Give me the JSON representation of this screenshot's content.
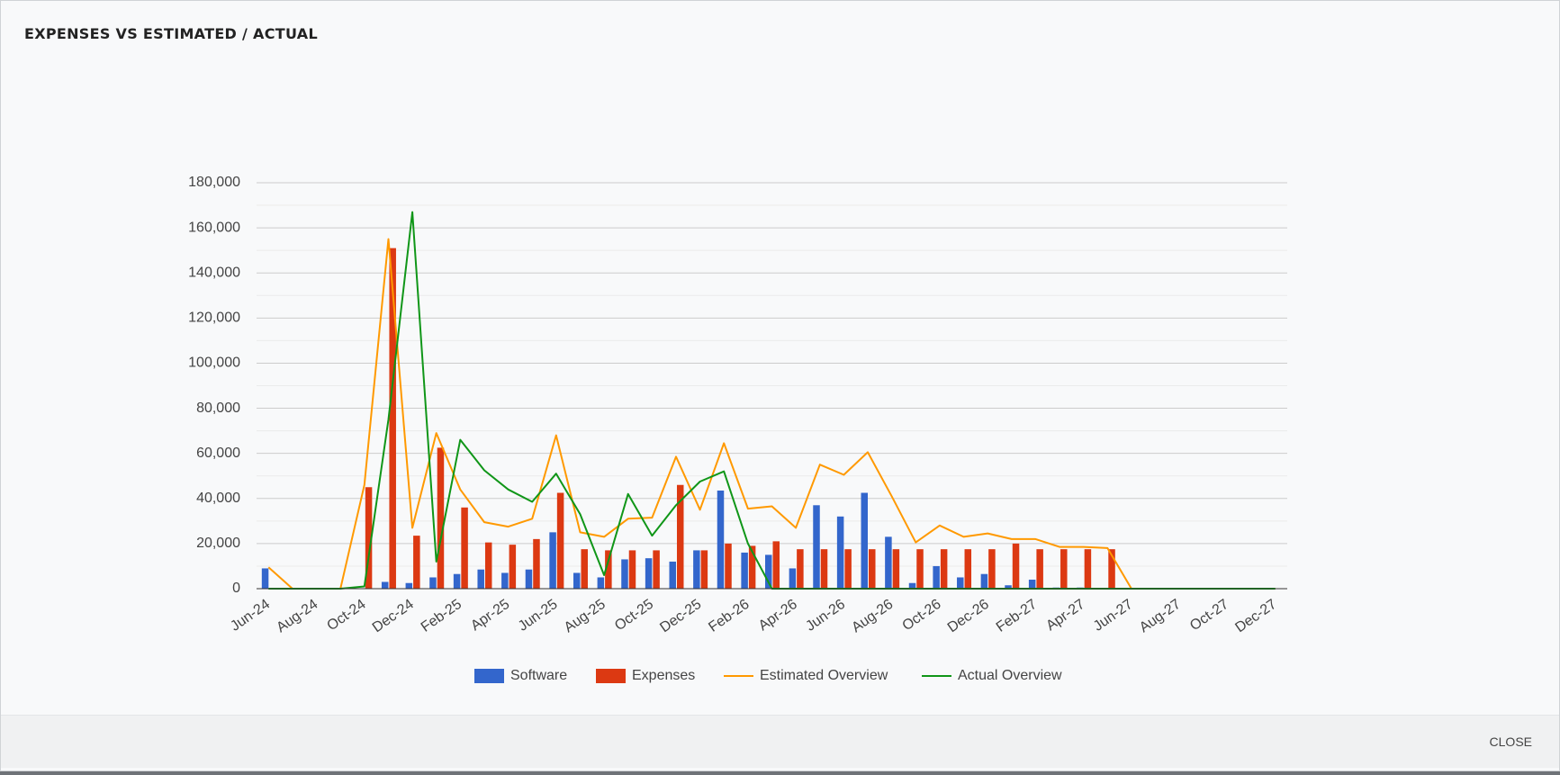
{
  "dialog": {
    "close": "CLOSE"
  },
  "chart_data": {
    "type": "bar",
    "title": "EXPENSES VS ESTIMATED / ACTUAL",
    "categories": [
      "Jun-24",
      null,
      "Aug-24",
      null,
      "Oct-24",
      null,
      "Dec-24",
      null,
      "Feb-25",
      null,
      "Apr-25",
      null,
      "Jun-25",
      null,
      "Aug-25",
      null,
      "Oct-25",
      null,
      "Dec-25",
      null,
      "Feb-26",
      null,
      "Apr-26",
      null,
      "Jun-26",
      null,
      "Aug-26",
      null,
      "Oct-26",
      null,
      "Dec-26",
      null,
      "Feb-27",
      null,
      "Apr-27",
      null,
      "Jun-27",
      null,
      "Aug-27",
      null,
      "Oct-27",
      null,
      "Dec-27"
    ],
    "series": [
      {
        "name": "Software",
        "type": "bar",
        "color": "#3366cc",
        "values": [
          9000,
          0,
          0,
          0,
          0,
          3000,
          2500,
          5000,
          6500,
          8500,
          7000,
          8500,
          25000,
          7000,
          5000,
          13000,
          13500,
          12000,
          17000,
          43500,
          16000,
          15000,
          9000,
          37000,
          32000,
          42500,
          23000,
          2500,
          10000,
          5000,
          6500,
          1500,
          4000,
          500,
          500,
          0,
          0,
          0,
          0,
          0,
          0,
          0,
          0
        ]
      },
      {
        "name": "Expenses",
        "type": "bar",
        "color": "#dc3912",
        "values": [
          0,
          0,
          0,
          0,
          45000,
          151000,
          23500,
          62500,
          36000,
          20500,
          19500,
          22000,
          42500,
          17500,
          17000,
          17000,
          17000,
          46000,
          17000,
          20000,
          19000,
          21000,
          17500,
          17500,
          17500,
          17500,
          17500,
          17500,
          17500,
          17500,
          17500,
          20000,
          17500,
          17500,
          17500,
          17500,
          0,
          0,
          0,
          0,
          0,
          0,
          0
        ]
      },
      {
        "name": "Estimated Overview",
        "type": "line",
        "color": "#ff9900",
        "values": [
          9500,
          0,
          0,
          0,
          46000,
          155000,
          27000,
          69000,
          44000,
          29500,
          27500,
          31000,
          68000,
          25000,
          23000,
          31000,
          31500,
          58500,
          35000,
          64500,
          35500,
          36500,
          27000,
          55000,
          50500,
          60500,
          41000,
          20500,
          28000,
          23000,
          24500,
          22000,
          22000,
          18500,
          18500,
          18000,
          0,
          0,
          0,
          0,
          0,
          0,
          0
        ]
      },
      {
        "name": "Actual Overview",
        "type": "line",
        "color": "#109618",
        "values": [
          0,
          0,
          0,
          0,
          1000,
          75000,
          167000,
          12000,
          66000,
          52500,
          44000,
          38500,
          51000,
          33000,
          6000,
          42000,
          23500,
          37000,
          47500,
          52000,
          20000,
          0,
          0,
          0,
          0,
          0,
          0,
          0,
          0,
          0,
          0,
          0,
          0,
          0,
          0,
          0,
          0,
          0,
          0,
          0,
          0,
          0,
          0
        ]
      }
    ],
    "ylim": [
      0,
      180000
    ],
    "yticks": [
      {
        "value": 0,
        "label": "0"
      },
      {
        "value": 20000,
        "label": "20,000"
      },
      {
        "value": 40000,
        "label": "40,000"
      },
      {
        "value": 60000,
        "label": "60,000"
      },
      {
        "value": 80000,
        "label": "80,000"
      },
      {
        "value": 100000,
        "label": "100,000"
      },
      {
        "value": 120000,
        "label": "120,000"
      },
      {
        "value": 140000,
        "label": "140,000"
      },
      {
        "value": 160000,
        "label": "160,000"
      },
      {
        "value": 180000,
        "label": "180,000"
      }
    ],
    "yminor_ticks": [
      10000,
      30000,
      50000,
      70000,
      90000,
      110000,
      130000,
      150000,
      170000
    ],
    "grid": true,
    "legend": "bottom"
  }
}
